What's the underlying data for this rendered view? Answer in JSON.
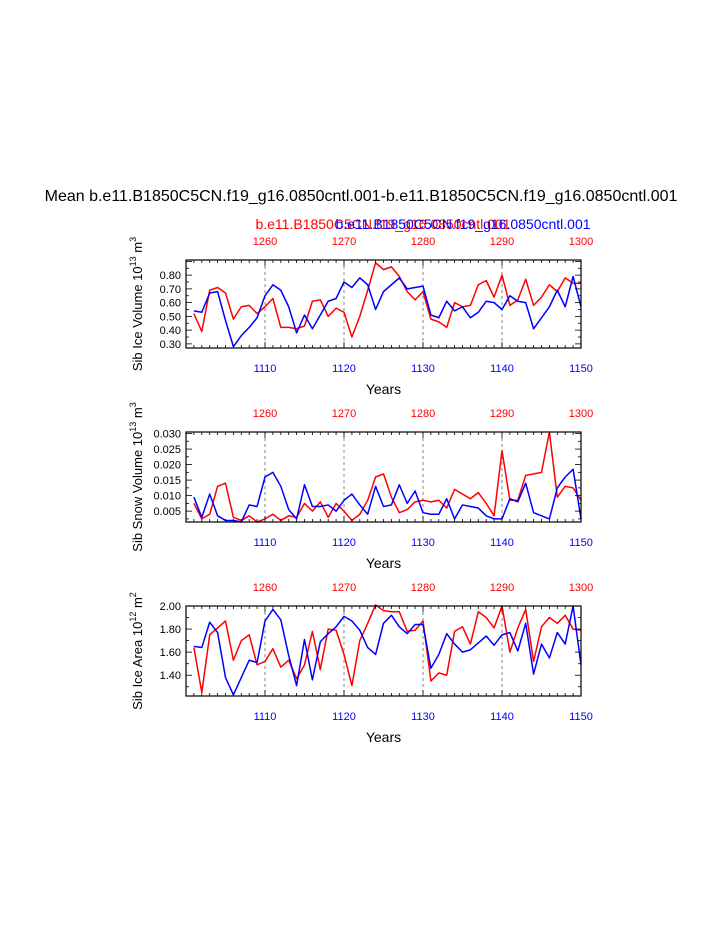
{
  "title": "Mean b.e11.B1850C5CN.f19_g16.0850cntl.001-b.e11.B1850C5CN.f19_g16.0850cntl.001",
  "subtitle_red": "b.e11.B1850C5CN.f19_g16.0850cntl.001",
  "subtitle_blue": "b.e11.B1850C5CN.f19_g16.0850cntl.001",
  "colors": {
    "red": "#ff0000",
    "blue": "#0000ff",
    "axis": "#000000",
    "grid": "#666666"
  },
  "chart_data": [
    {
      "type": "line",
      "ylabel": "Sib Ice Volume 10",
      "ylabel_exp": "13",
      "ylabel_unit": " m",
      "ylabel_unit_exp": "3",
      "xlabel": "Years",
      "xlim": [
        1100,
        1150
      ],
      "ylim": [
        0.27,
        0.91
      ],
      "yticks": [
        0.3,
        0.4,
        0.5,
        0.6,
        0.7,
        0.8
      ],
      "ytick_labels": [
        "0.30",
        "0.40",
        "0.50",
        "0.60",
        "0.70",
        "0.80"
      ],
      "bottom_ticks": [
        1110,
        1120,
        1130,
        1140,
        1150
      ],
      "bottom_tick_labels": [
        "1110",
        "1120",
        "1130",
        "1140",
        "1150"
      ],
      "top_ticks": [
        1260,
        1270,
        1280,
        1290,
        1300
      ],
      "top_tick_labels": [
        "1260",
        "1270",
        "1280",
        "1290",
        "1300"
      ],
      "top_offset": 150,
      "series": [
        {
          "name": "red",
          "values": [
            0.52,
            0.39,
            0.69,
            0.71,
            0.67,
            0.48,
            0.57,
            0.58,
            0.52,
            0.57,
            0.63,
            0.42,
            0.42,
            0.41,
            0.43,
            0.61,
            0.62,
            0.5,
            0.56,
            0.53,
            0.35,
            0.5,
            0.69,
            0.89,
            0.84,
            0.86,
            0.79,
            0.68,
            0.62,
            0.68,
            0.48,
            0.46,
            0.42,
            0.6,
            0.57,
            0.58,
            0.73,
            0.76,
            0.64,
            0.8,
            0.58,
            0.62,
            0.77,
            0.58,
            0.64,
            0.73,
            0.68,
            0.78,
            0.74,
            0.74
          ]
        },
        {
          "name": "blue",
          "values": [
            0.54,
            0.53,
            0.67,
            0.68,
            0.47,
            0.28,
            0.36,
            0.42,
            0.49,
            0.65,
            0.73,
            0.69,
            0.57,
            0.38,
            0.51,
            0.41,
            0.51,
            0.61,
            0.63,
            0.75,
            0.71,
            0.78,
            0.73,
            0.55,
            0.68,
            0.73,
            0.78,
            0.7,
            0.71,
            0.72,
            0.51,
            0.49,
            0.61,
            0.54,
            0.57,
            0.49,
            0.53,
            0.61,
            0.6,
            0.55,
            0.65,
            0.61,
            0.6,
            0.41,
            0.49,
            0.57,
            0.69,
            0.57,
            0.79,
            0.57
          ]
        }
      ]
    },
    {
      "type": "line",
      "ylabel": "Sib Snow Volume 10",
      "ylabel_exp": "13",
      "ylabel_unit": " m",
      "ylabel_unit_exp": "3",
      "xlabel": "Years",
      "xlim": [
        1100,
        1150
      ],
      "ylim": [
        0.0015,
        0.0305
      ],
      "yticks": [
        0.005,
        0.01,
        0.015,
        0.02,
        0.025,
        0.03
      ],
      "ytick_labels": [
        "0.005",
        "0.010",
        "0.015",
        "0.020",
        "0.025",
        "0.030"
      ],
      "bottom_ticks": [
        1110,
        1120,
        1130,
        1140,
        1150
      ],
      "bottom_tick_labels": [
        "1110",
        "1120",
        "1130",
        "1140",
        "1150"
      ],
      "top_ticks": [
        1260,
        1270,
        1280,
        1290,
        1300
      ],
      "top_tick_labels": [
        "1260",
        "1270",
        "1280",
        "1290",
        "1300"
      ],
      "top_offset": 150,
      "series": [
        {
          "name": "red",
          "values": [
            0.0075,
            0.0025,
            0.004,
            0.013,
            0.014,
            0.003,
            0.002,
            0.0035,
            0.0015,
            0.0025,
            0.004,
            0.002,
            0.0035,
            0.003,
            0.0075,
            0.005,
            0.008,
            0.003,
            0.0075,
            0.005,
            0.002,
            0.004,
            0.0085,
            0.016,
            0.017,
            0.0095,
            0.0045,
            0.0055,
            0.008,
            0.0085,
            0.008,
            0.0085,
            0.006,
            0.012,
            0.0105,
            0.009,
            0.011,
            0.0075,
            0.0035,
            0.0245,
            0.0085,
            0.0085,
            0.0165,
            0.017,
            0.0175,
            0.0305,
            0.0095,
            0.013,
            0.0125,
            0.0085
          ]
        },
        {
          "name": "blue",
          "values": [
            0.0095,
            0.003,
            0.0105,
            0.0035,
            0.002,
            0.002,
            0.0015,
            0.007,
            0.0065,
            0.016,
            0.0175,
            0.013,
            0.0055,
            0.0025,
            0.0135,
            0.0065,
            0.0065,
            0.007,
            0.005,
            0.0085,
            0.0105,
            0.007,
            0.004,
            0.013,
            0.0065,
            0.007,
            0.0135,
            0.0075,
            0.0115,
            0.0045,
            0.004,
            0.004,
            0.009,
            0.0025,
            0.007,
            0.0065,
            0.006,
            0.0035,
            0.0025,
            0.0025,
            0.009,
            0.008,
            0.014,
            0.0045,
            0.0035,
            0.0025,
            0.0125,
            0.016,
            0.0185,
            0.0025
          ]
        }
      ]
    },
    {
      "type": "line",
      "ylabel": "Sib Ice Area 10",
      "ylabel_exp": "12",
      "ylabel_unit": " m",
      "ylabel_unit_exp": "2",
      "xlabel": "Years",
      "xlim": [
        1100,
        1150
      ],
      "ylim": [
        1.22,
        2.0
      ],
      "yticks": [
        1.4,
        1.6,
        1.8,
        2.0
      ],
      "ytick_labels": [
        "1.40",
        "1.60",
        "1.80",
        "2.00"
      ],
      "bottom_ticks": [
        1110,
        1120,
        1130,
        1140,
        1150
      ],
      "bottom_tick_labels": [
        "1110",
        "1120",
        "1130",
        "1140",
        "1150"
      ],
      "top_ticks": [
        1260,
        1270,
        1280,
        1290,
        1300
      ],
      "top_tick_labels": [
        "1260",
        "1270",
        "1280",
        "1290",
        "1300"
      ],
      "top_offset": 150,
      "series": [
        {
          "name": "red",
          "values": [
            1.64,
            1.25,
            1.75,
            1.81,
            1.87,
            1.53,
            1.7,
            1.75,
            1.49,
            1.52,
            1.63,
            1.47,
            1.53,
            1.37,
            1.49,
            1.78,
            1.45,
            1.8,
            1.79,
            1.58,
            1.31,
            1.7,
            1.85,
            2.01,
            1.96,
            1.95,
            1.95,
            1.78,
            1.79,
            1.87,
            1.35,
            1.42,
            1.4,
            1.78,
            1.82,
            1.67,
            1.95,
            1.9,
            1.81,
            2.0,
            1.6,
            1.81,
            1.97,
            1.52,
            1.82,
            1.9,
            1.85,
            1.92,
            1.8,
            1.79
          ]
        },
        {
          "name": "blue",
          "values": [
            1.65,
            1.64,
            1.86,
            1.77,
            1.38,
            1.23,
            1.38,
            1.53,
            1.51,
            1.87,
            1.97,
            1.88,
            1.57,
            1.31,
            1.71,
            1.36,
            1.69,
            1.76,
            1.82,
            1.91,
            1.87,
            1.79,
            1.64,
            1.58,
            1.85,
            1.92,
            1.82,
            1.76,
            1.84,
            1.84,
            1.46,
            1.58,
            1.76,
            1.67,
            1.6,
            1.62,
            1.68,
            1.74,
            1.66,
            1.75,
            1.77,
            1.61,
            1.85,
            1.41,
            1.67,
            1.55,
            1.77,
            1.67,
            2.0,
            1.49
          ]
        }
      ]
    }
  ]
}
